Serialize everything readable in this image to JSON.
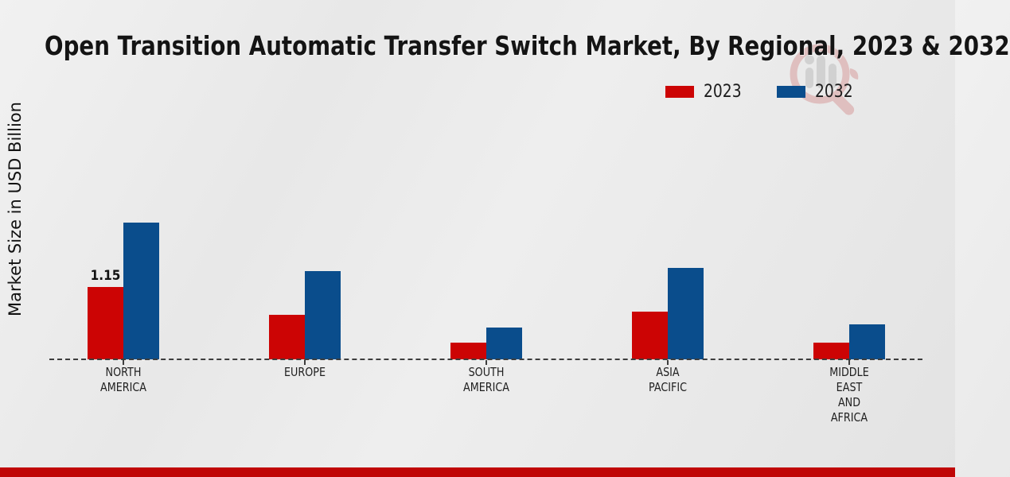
{
  "header": {
    "title": "Open Transition Automatic Transfer Switch Market, By Regional, 2023 & 2032"
  },
  "y_axis": {
    "label": "Market Size in USD Billion"
  },
  "legend": {
    "items": [
      {
        "label": "2023",
        "color": "#cc0404"
      },
      {
        "label": "2032",
        "color": "#0a4d8c"
      }
    ]
  },
  "watermark": {
    "icon": "magnifier-bar-chart-logo"
  },
  "footer": {
    "color": "#c00606"
  },
  "chart_data": {
    "type": "bar",
    "title": "Open Transition Automatic Transfer Switch Market, By Regional, 2023 & 2032",
    "xlabel": "",
    "ylabel": "Market Size in USD Billion",
    "categories": [
      [
        "NORTH",
        "AMERICA"
      ],
      [
        "EUROPE"
      ],
      [
        "SOUTH",
        "AMERICA"
      ],
      [
        "ASIA",
        "PACIFIC"
      ],
      [
        "MIDDLE",
        "EAST",
        "AND",
        "AFRICA"
      ]
    ],
    "series": [
      {
        "name": "2023",
        "color": "#cc0404",
        "values": [
          1.15,
          0.71,
          0.27,
          0.76,
          0.27
        ],
        "value_labels": [
          "1.15",
          null,
          null,
          null,
          null
        ]
      },
      {
        "name": "2032",
        "color": "#0a4d8c",
        "values": [
          2.17,
          1.4,
          0.5,
          1.45,
          0.56
        ],
        "value_labels": [
          null,
          null,
          null,
          null,
          null
        ]
      }
    ],
    "ylim": [
      0,
      2.4
    ],
    "grid": false,
    "baseline_style": "dashed",
    "legend_position": "top-right"
  }
}
